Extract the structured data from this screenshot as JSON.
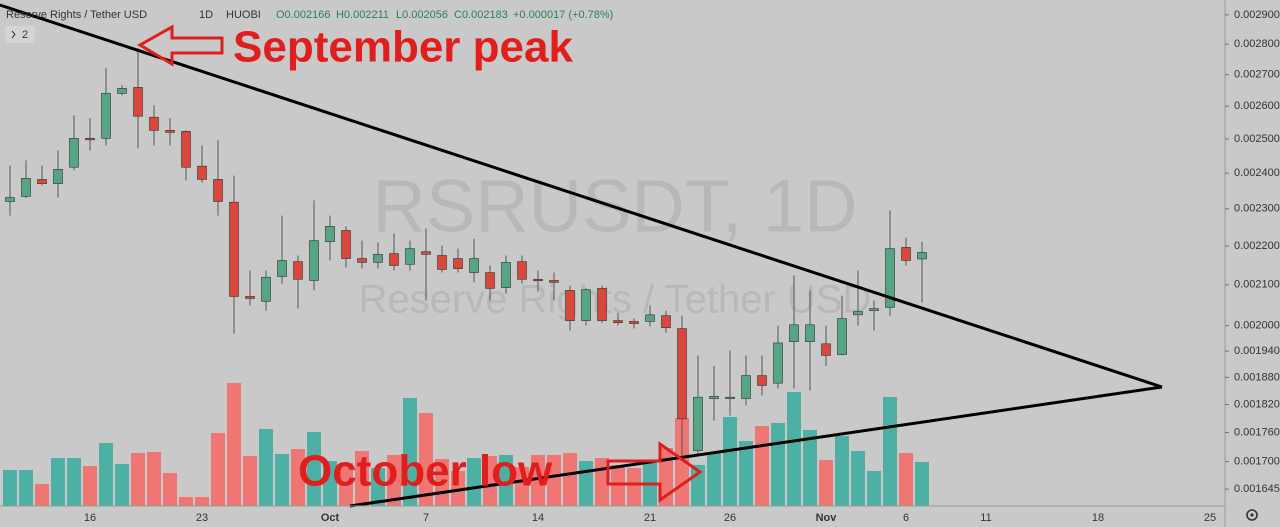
{
  "chart_data": {
    "type": "candlestick",
    "header": {
      "symbol": "Reserve Rights / Tether USD",
      "interval": "1D",
      "exchange": "HUOBI",
      "ohlc": [
        "O0.002166",
        "H0.002211",
        "L0.002056",
        "C0.002183",
        "+0.000017 (+0.78%)"
      ]
    },
    "indicator_toggle": "2",
    "watermark": {
      "title": "RSRUSDT, 1D",
      "subtitle": "Reserve Rights / Tether USD"
    },
    "annotations": [
      "September peak",
      "October low"
    ],
    "log_scale": true,
    "up_color": "#55a585",
    "down_color": "#d8483c",
    "volume_up_color": "#4cb0a4",
    "volume_down_color": "#ef7672",
    "categories": [
      null,
      null,
      null,
      null,
      null,
      "16",
      null,
      null,
      null,
      null,
      null,
      null,
      "23",
      null,
      null,
      null,
      null,
      null,
      null,
      null,
      "Oct",
      null,
      null,
      null,
      null,
      null,
      "7",
      null,
      null,
      null,
      null,
      null,
      null,
      "14",
      null,
      null,
      null,
      null,
      null,
      null,
      "21",
      null,
      null,
      null,
      null,
      "26",
      null,
      null,
      null,
      null,
      null,
      "Nov",
      null,
      null,
      null,
      null,
      "6",
      null,
      null,
      null,
      null,
      "11",
      null,
      null,
      null,
      null,
      null,
      null,
      "18",
      null,
      null,
      null,
      null,
      null,
      null,
      "25"
    ],
    "open": [
      0.00232,
      0.002334,
      0.002382,
      0.00237,
      0.002417,
      0.002502,
      0.002502,
      0.00264,
      0.002659,
      0.002566,
      0.002526,
      0.002523,
      0.00242,
      0.002382,
      0.002318,
      0.002071,
      0.002059,
      0.002121,
      0.002159,
      0.002111,
      0.002211,
      0.002241,
      0.002167,
      0.002157,
      0.00218,
      0.002152,
      0.002185,
      0.002175,
      0.002167,
      0.002131,
      0.002131,
      0.002093,
      0.002159,
      0.002114,
      0.002111,
      0.002086,
      0.002012,
      0.002091,
      0.002012,
      0.00201,
      0.00201,
      0.002024,
      0.001993,
      0.001722,
      0.001833,
      0.001833,
      0.001833,
      0.001884,
      0.001867,
      0.001962,
      0.001962,
      0.001957,
      0.001932,
      0.002026,
      0.002036,
      0.002044,
      0.002196,
      0.002166,
      null,
      null,
      null,
      null,
      null,
      null,
      null,
      null,
      null,
      null,
      null,
      null,
      null,
      null,
      null,
      null,
      null,
      null
    ],
    "high": [
      0.002422,
      0.002437,
      0.002422,
      0.002466,
      0.002572,
      0.002563,
      0.002721,
      0.002666,
      0.002787,
      0.002603,
      0.002563,
      0.002526,
      0.002481,
      0.002496,
      0.002393,
      0.002136,
      0.002136,
      0.002281,
      0.002175,
      0.002323,
      0.002281,
      0.002252,
      0.002214,
      0.002209,
      0.002233,
      0.002214,
      0.002246,
      0.002201,
      0.002193,
      0.002219,
      0.002149,
      0.002175,
      0.002175,
      0.002136,
      0.002131,
      0.002098,
      0.002091,
      0.002098,
      0.002031,
      0.002017,
      0.002049,
      0.002036,
      0.002024,
      0.00193,
      0.001906,
      0.001941,
      0.00193,
      0.00193,
      0.002,
      0.002124,
      0.002086,
      0.002,
      0.002073,
      0.002136,
      0.002061,
      0.002295,
      0.002222,
      0.002211,
      null,
      null,
      null,
      null,
      null,
      null,
      null,
      null,
      null,
      null,
      null,
      null,
      null,
      null,
      null,
      null,
      null,
      null
    ],
    "low": [
      0.002281,
      0.002329,
      0.002365,
      0.002331,
      0.002408,
      0.002466,
      0.002481,
      0.002634,
      0.002472,
      0.002481,
      0.002481,
      0.002379,
      0.002373,
      0.002281,
      0.001981,
      0.002049,
      0.002036,
      0.002103,
      0.002041,
      0.002086,
      0.002162,
      0.002144,
      0.002141,
      0.002141,
      0.002136,
      0.002136,
      0.002061,
      0.002131,
      0.002131,
      0.002106,
      0.002061,
      0.002078,
      0.002103,
      0.002083,
      0.002061,
      0.001988,
      0.002,
      0.002007,
      0.002,
      0.001993,
      0.001998,
      0.001983,
      0.001701,
      0.001711,
      0.001785,
      0.001796,
      0.001818,
      0.00184,
      0.001855,
      0.001855,
      0.001851,
      0.001906,
      0.00193,
      0.002,
      0.001988,
      0.002024,
      0.002149,
      0.002056,
      null,
      null,
      null,
      null,
      null,
      null,
      null,
      null,
      null,
      null,
      null,
      null,
      null,
      null,
      null,
      null,
      null,
      null
    ],
    "close": [
      0.002331,
      0.002385,
      0.00237,
      0.002411,
      0.002502,
      0.002499,
      0.00264,
      0.002656,
      0.002569,
      0.002526,
      0.00252,
      0.002417,
      0.002382,
      0.00232,
      0.002071,
      0.002066,
      0.002119,
      0.002162,
      0.002114,
      0.002214,
      0.002252,
      0.002167,
      0.002157,
      0.002178,
      0.002149,
      0.002193,
      0.002178,
      0.002139,
      0.002141,
      0.002167,
      0.002091,
      0.002157,
      0.002114,
      0.002111,
      0.002106,
      0.002012,
      0.002088,
      0.002012,
      0.002007,
      0.002005,
      0.002026,
      0.001995,
      0.001789,
      0.001836,
      0.001838,
      0.001836,
      0.001884,
      0.001862,
      0.001959,
      0.002002,
      0.002002,
      0.00193,
      0.002017,
      0.002034,
      0.002041,
      0.002193,
      0.002162,
      0.002183,
      null,
      null,
      null,
      null,
      null,
      null,
      null,
      null,
      null,
      null,
      null,
      null,
      null,
      null,
      null,
      null,
      null,
      null
    ],
    "volume": [
      36,
      36,
      22,
      48,
      48,
      40,
      63,
      42,
      53,
      54,
      33,
      9,
      9,
      73,
      123,
      50,
      77,
      52,
      57,
      74,
      45,
      43,
      55,
      38,
      51,
      108,
      93,
      47,
      35,
      48,
      50,
      51,
      39,
      51,
      51,
      53,
      45,
      48,
      41,
      38,
      43,
      58,
      88,
      41,
      53,
      89,
      65,
      80,
      83,
      114,
      76,
      46,
      70,
      55,
      35,
      109,
      53,
      44,
      null,
      null,
      null,
      null,
      null,
      null,
      null,
      null,
      null,
      null,
      null,
      null,
      null,
      null,
      null,
      null,
      null,
      null
    ],
    "ylim": [
      0.001612,
      0.002952
    ],
    "yticks": [
      {
        "value": 0.001645,
        "label": "0.001645"
      },
      {
        "value": 0.0017,
        "label": "0.001700"
      },
      {
        "value": 0.00176,
        "label": "0.001760"
      },
      {
        "value": 0.00182,
        "label": "0.001820"
      },
      {
        "value": 0.00188,
        "label": "0.001880"
      },
      {
        "value": 0.00194,
        "label": "0.001940"
      },
      {
        "value": 0.002,
        "label": "0.002000"
      },
      {
        "value": 0.0021,
        "label": "0.002100"
      },
      {
        "value": 0.0022,
        "label": "0.002200"
      },
      {
        "value": 0.0023,
        "label": "0.002300"
      },
      {
        "value": 0.0024,
        "label": "0.002400"
      },
      {
        "value": 0.0025,
        "label": "0.002500"
      },
      {
        "value": 0.0026,
        "label": "0.002600"
      },
      {
        "value": 0.0027,
        "label": "0.002700"
      },
      {
        "value": 0.0028,
        "label": "0.002800"
      },
      {
        "value": 0.0029,
        "label": "0.002900"
      }
    ]
  }
}
